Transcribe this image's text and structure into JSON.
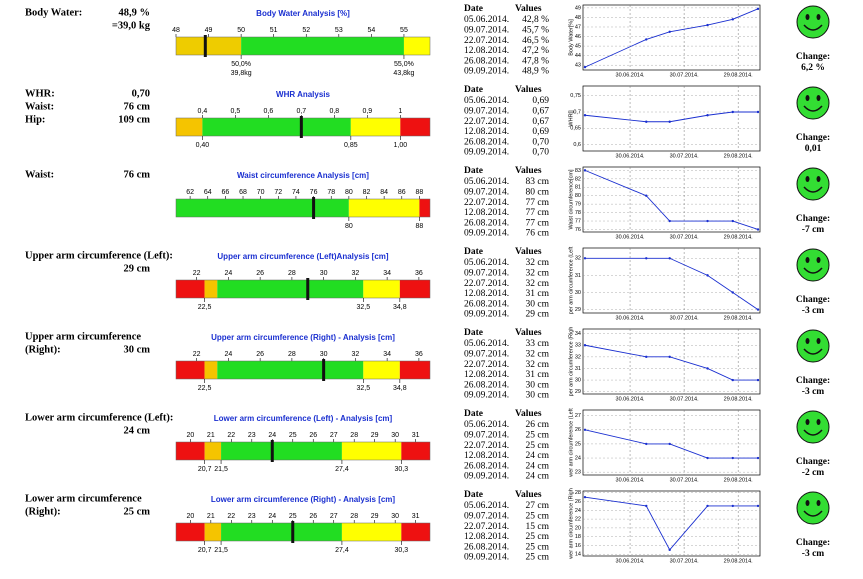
{
  "header": {
    "date": "Date",
    "values": "Values",
    "change": "Change:"
  },
  "dates": [
    "05.06.2014.",
    "09.07.2014.",
    "22.07.2014.",
    "12.08.2014.",
    "26.08.2014.",
    "09.09.2014."
  ],
  "chart_xticks": [
    "30.06.2014.",
    "30.07.2014.",
    "29.08.2014."
  ],
  "chart_xlim": [
    "05.06.2014.",
    "09.09.2014."
  ],
  "rows": [
    {
      "labels": [
        "Body Water:"
      ],
      "values": [
        "48,9 %",
        "=39,0 kg"
      ],
      "bar": {
        "title": "Body Water Analysis [%]",
        "scale": [
          48,
          55.8
        ],
        "ticks": [
          48,
          49,
          50,
          51,
          52,
          53,
          54,
          55
        ],
        "zones": [
          {
            "from": 48,
            "to": 50,
            "color": "#eecc00"
          },
          {
            "from": 50,
            "to": 55,
            "color": "#22dd22"
          },
          {
            "from": 55,
            "to": 55.8,
            "color": "#ffff00"
          }
        ],
        "marker": 48.9,
        "limits": [
          {
            "value": 50,
            "label": "50,0%",
            "sub": "39,8kg"
          },
          {
            "value": 55,
            "label": "55,0%",
            "sub": "43,8kg"
          }
        ]
      },
      "table": [
        "42,8 %",
        "45,7 %",
        "46,5 %",
        "47,2 %",
        "47,8 %",
        "48,9 %"
      ],
      "chart": {
        "ylabel": "Body Water[%]",
        "values": [
          42.8,
          45.7,
          46.5,
          47.2,
          47.8,
          48.9
        ],
        "ylim": [
          42.5,
          49.3
        ],
        "yticks": [
          43,
          44,
          45,
          46,
          47,
          48,
          49
        ]
      },
      "change": "6,2 %"
    },
    {
      "labels": [
        "WHR:",
        "Waist:",
        "Hip:"
      ],
      "values": [
        "0,70",
        "76 cm",
        "109 cm"
      ],
      "bar": {
        "title": "WHR Analysis",
        "scale": [
          0.32,
          1.09
        ],
        "ticks": [
          {
            "value": 0.4,
            "label": "0,4"
          },
          {
            "value": 0.5,
            "label": "0,5"
          },
          {
            "value": 0.6,
            "label": "0,6"
          },
          {
            "value": 0.7,
            "label": "0,7"
          },
          {
            "value": 0.8,
            "label": "0,8"
          },
          {
            "value": 0.9,
            "label": "0,9"
          },
          1
        ],
        "zones": [
          {
            "from": 0.32,
            "to": 0.4,
            "color": "#f5c400"
          },
          {
            "from": 0.4,
            "to": 0.85,
            "color": "#22dd22"
          },
          {
            "from": 0.85,
            "to": 1.0,
            "color": "#ffff00"
          },
          {
            "from": 1.0,
            "to": 1.09,
            "color": "#ee1111"
          }
        ],
        "marker": 0.7,
        "limits": [
          {
            "value": 0.4,
            "label": "0,40"
          },
          {
            "value": 0.85,
            "label": "0,85"
          },
          {
            "value": 1,
            "label": "1,00"
          }
        ]
      },
      "table": [
        "0,69",
        "0,67",
        "0,67",
        "0,69",
        "0,70",
        "0,70"
      ],
      "chart": {
        "ylabel": "WHR[]",
        "values": [
          0.69,
          0.67,
          0.67,
          0.69,
          0.7,
          0.7
        ],
        "ylim": [
          0.58,
          0.78
        ],
        "yticks": [
          {
            "value": 0.6,
            "label": "0,6"
          },
          {
            "value": 0.65,
            "label": "0,65"
          },
          {
            "value": 0.7,
            "label": "0,7"
          },
          {
            "value": 0.75,
            "label": "0,75"
          }
        ]
      },
      "change": "0,01"
    },
    {
      "labels": [
        "Waist:"
      ],
      "values": [
        "76 cm"
      ],
      "bar": {
        "title": "Waist circumference Analysis [cm]",
        "scale": [
          60.4,
          89.2
        ],
        "ticks": [
          62,
          64,
          66,
          68,
          70,
          72,
          74,
          76,
          78,
          80,
          82,
          84,
          86,
          88
        ],
        "zones": [
          {
            "from": 60.4,
            "to": 80,
            "color": "#22dd22"
          },
          {
            "from": 80,
            "to": 88,
            "color": "#ffff00"
          },
          {
            "from": 88,
            "to": 89.2,
            "color": "#ee1111"
          }
        ],
        "marker": 76,
        "limits": [
          80,
          88
        ]
      },
      "table": [
        "83 cm",
        "80 cm",
        "77 cm",
        "77 cm",
        "77 cm",
        "76 cm"
      ],
      "chart": {
        "ylabel": "Waist circumference[cm]",
        "values": [
          83,
          80,
          77,
          77,
          77,
          76
        ],
        "ylim": [
          75.7,
          83.4
        ],
        "yticks": [
          76,
          77,
          78,
          79,
          80,
          81,
          82,
          83
        ]
      },
      "change": "-7 cm"
    },
    {
      "labels": [
        "Upper arm circumference (Left):"
      ],
      "values": [
        "29 cm"
      ],
      "bar": {
        "title": "Upper arm circumference (Left)Analysis [cm]",
        "scale": [
          20.7,
          36.7
        ],
        "ticks": [
          22,
          24,
          26,
          28,
          30,
          32,
          34,
          36
        ],
        "zones": [
          {
            "from": 20.7,
            "to": 22.5,
            "color": "#ee1111"
          },
          {
            "from": 22.5,
            "to": 23.3,
            "color": "#f5c400"
          },
          {
            "from": 23.3,
            "to": 32.5,
            "color": "#22dd22"
          },
          {
            "from": 32.5,
            "to": 34.8,
            "color": "#ffff00"
          },
          {
            "from": 34.8,
            "to": 36.7,
            "color": "#ee1111"
          }
        ],
        "marker": 29,
        "limits": [
          {
            "value": 22.5,
            "label": "22,5"
          },
          {
            "value": 32.5,
            "label": "32,5"
          },
          {
            "value": 34.8,
            "label": "34,8"
          }
        ]
      },
      "table": [
        "32 cm",
        "32 cm",
        "32 cm",
        "31 cm",
        "30 cm",
        "29 cm"
      ],
      "chart": {
        "ylabel": "per arm circumference (Left",
        "values": [
          32,
          32,
          32,
          31,
          30,
          29
        ],
        "ylim": [
          28.8,
          32.6
        ],
        "yticks": [
          29,
          30,
          31,
          32
        ]
      },
      "change": "-3 cm"
    },
    {
      "labels": [
        "Upper arm circumference",
        "(Right):"
      ],
      "values": [
        "30 cm"
      ],
      "bar": {
        "title": "Upper arm circumference (Right) - Analysis [cm]",
        "scale": [
          20.7,
          36.7
        ],
        "ticks": [
          22,
          24,
          26,
          28,
          30,
          32,
          34,
          36
        ],
        "zones": [
          {
            "from": 20.7,
            "to": 22.5,
            "color": "#ee1111"
          },
          {
            "from": 22.5,
            "to": 23.3,
            "color": "#f5c400"
          },
          {
            "from": 23.3,
            "to": 32.5,
            "color": "#22dd22"
          },
          {
            "from": 32.5,
            "to": 34.8,
            "color": "#ffff00"
          },
          {
            "from": 34.8,
            "to": 36.7,
            "color": "#ee1111"
          }
        ],
        "marker": 30,
        "limits": [
          {
            "value": 22.5,
            "label": "22,5"
          },
          {
            "value": 32.5,
            "label": "32,5"
          },
          {
            "value": 34.8,
            "label": "34,8"
          }
        ]
      },
      "table": [
        "33 cm",
        "32 cm",
        "32 cm",
        "31 cm",
        "30 cm",
        "30 cm"
      ],
      "chart": {
        "ylabel": "per arm circumference (Righ",
        "values": [
          33,
          32,
          32,
          31,
          30,
          30
        ],
        "ylim": [
          28.8,
          34.4
        ],
        "yticks": [
          29,
          30,
          31,
          32,
          33,
          34
        ]
      },
      "change": "-3 cm"
    },
    {
      "labels": [
        "Lower arm circumference (Left):"
      ],
      "values": [
        "24 cm"
      ],
      "bar": {
        "title": "Lower arm circumference (Left) - Analysis [cm]",
        "scale": [
          19.3,
          31.7
        ],
        "ticks": [
          20,
          21,
          22,
          23,
          24,
          25,
          26,
          27,
          28,
          29,
          30,
          31
        ],
        "zones": [
          {
            "from": 19.3,
            "to": 20.7,
            "color": "#ee1111"
          },
          {
            "from": 20.7,
            "to": 21.5,
            "color": "#f5c400"
          },
          {
            "from": 21.5,
            "to": 27.4,
            "color": "#22dd22"
          },
          {
            "from": 27.4,
            "to": 30.3,
            "color": "#ffff00"
          },
          {
            "from": 30.3,
            "to": 31.7,
            "color": "#ee1111"
          }
        ],
        "marker": 24,
        "limits": [
          {
            "value": 20.7,
            "label": "20,7"
          },
          {
            "value": 21.5,
            "label": "21,5"
          },
          {
            "value": 27.4,
            "label": "27,4"
          },
          {
            "value": 30.3,
            "label": "30,3"
          }
        ]
      },
      "table": [
        "26 cm",
        "25 cm",
        "25 cm",
        "24 cm",
        "24 cm",
        "24 cm"
      ],
      "chart": {
        "ylabel": "wer arm circumference (Left",
        "values": [
          26,
          25,
          25,
          24,
          24,
          24
        ],
        "ylim": [
          22.8,
          27.4
        ],
        "yticks": [
          23,
          24,
          25,
          26,
          27
        ]
      },
      "change": "-2 cm"
    },
    {
      "labels": [
        "Lower arm circumference",
        "(Right):"
      ],
      "values": [
        "25 cm"
      ],
      "bar": {
        "title": "Lower arm circumference (Right) - Analysis [cm]",
        "scale": [
          19.3,
          31.7
        ],
        "ticks": [
          20,
          21,
          22,
          23,
          24,
          25,
          26,
          27,
          28,
          29,
          30,
          31
        ],
        "zones": [
          {
            "from": 19.3,
            "to": 20.7,
            "color": "#ee1111"
          },
          {
            "from": 20.7,
            "to": 21.5,
            "color": "#f5c400"
          },
          {
            "from": 21.5,
            "to": 27.4,
            "color": "#22dd22"
          },
          {
            "from": 27.4,
            "to": 30.3,
            "color": "#ffff00"
          },
          {
            "from": 30.3,
            "to": 31.7,
            "color": "#ee1111"
          }
        ],
        "marker": 25,
        "limits": [
          {
            "value": 20.7,
            "label": "20,7"
          },
          {
            "value": 21.5,
            "label": "21,5"
          },
          {
            "value": 27.4,
            "label": "27,4"
          },
          {
            "value": 30.3,
            "label": "30,3"
          }
        ]
      },
      "table": [
        "27 cm",
        "25 cm",
        "15 cm",
        "25 cm",
        "25 cm",
        "25 cm"
      ],
      "chart": {
        "ylabel": "wer arm circumference (Righ",
        "values": [
          27,
          25,
          15,
          25,
          25,
          25
        ],
        "ylim": [
          13.6,
          28.4
        ],
        "yticks": [
          14,
          16,
          18,
          20,
          22,
          24,
          26,
          28
        ]
      },
      "change": "-3 cm"
    }
  ]
}
